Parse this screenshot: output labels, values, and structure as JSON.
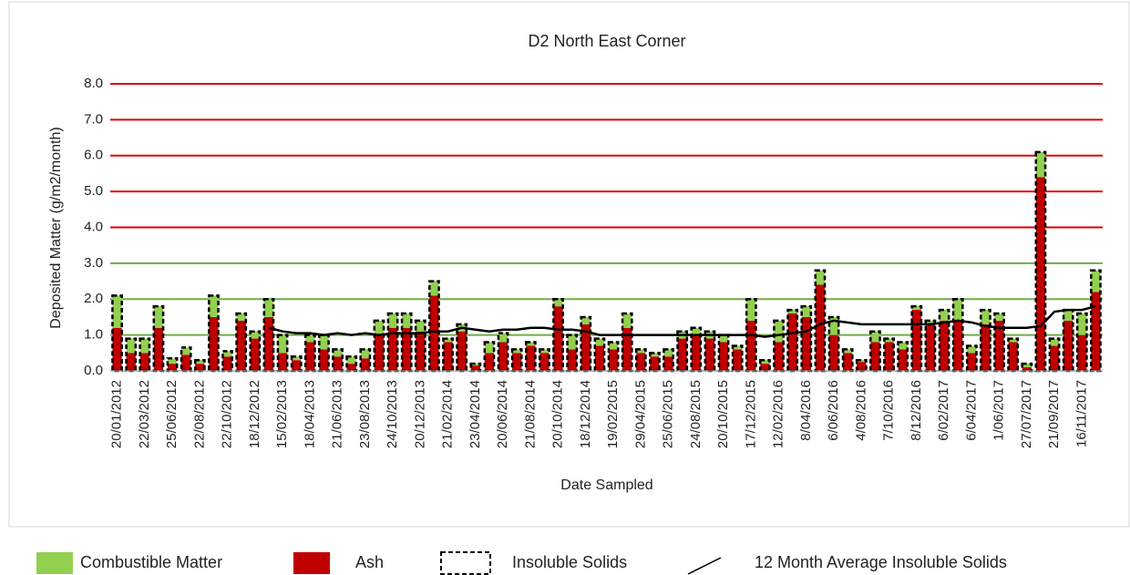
{
  "chart_data": {
    "type": "bar",
    "title": "D2 North East Corner",
    "x_label": "Date Sampled",
    "y_label": "Deposited Matter (g/m2/month)",
    "categories": [
      "20/01/2012",
      null,
      "22/03/2012",
      null,
      "25/06/2012",
      null,
      "22/08/2012",
      null,
      "22/10/2012",
      null,
      "18/12/2012",
      null,
      "15/02/2013",
      null,
      "18/04/2013",
      null,
      "21/06/2013",
      null,
      "23/08/2013",
      null,
      "24/10/2013",
      null,
      "20/12/2013",
      null,
      "21/02/2014",
      null,
      "23/04/2014",
      null,
      "20/06/2014",
      null,
      "21/08/2014",
      null,
      "20/10/2014",
      null,
      "18/12/2014",
      null,
      "19/02/2015",
      null,
      "29/04/2015",
      null,
      "25/06/2015",
      null,
      "24/08/2015",
      null,
      "20/10/2015",
      null,
      "17/12/2015",
      null,
      "12/02/2016",
      null,
      "8/04/2016",
      null,
      "6/06/2016",
      null,
      "4/08/2016",
      null,
      "7/10/2016",
      null,
      "8/12/2016",
      null,
      "6/02/2017",
      null,
      "6/04/2017",
      null,
      "1/06/2017",
      null,
      "27/07/2017",
      null,
      "21/09/2017",
      null,
      "16/11/2017",
      null
    ],
    "series": [
      {
        "name": "Combustible Matter",
        "color": "#92d050",
        "values": [
          0.9,
          0.4,
          0.4,
          0.6,
          0.15,
          0.2,
          0.1,
          0.6,
          0.15,
          0.2,
          0.2,
          0.5,
          0.5,
          0.1,
          0.2,
          0.4,
          0.2,
          0.2,
          0.25,
          0.4,
          0.4,
          0.4,
          0.3,
          0.4,
          0.1,
          0.2,
          0.05,
          0.3,
          0.25,
          0.1,
          0.1,
          0.1,
          0.2,
          0.4,
          0.2,
          0.2,
          0.2,
          0.4,
          0.1,
          0.1,
          0.2,
          0.2,
          0.2,
          0.2,
          0.2,
          0.1,
          0.6,
          0.1,
          0.6,
          0.1,
          0.3,
          0.4,
          0.5,
          0.1,
          0.05,
          0.3,
          0.1,
          0.2,
          0.1,
          0.1,
          0.3,
          0.6,
          0.2,
          0.4,
          0.2,
          0.1,
          0.1,
          0.7,
          0.2,
          0.3,
          0.6,
          0.6
        ]
      },
      {
        "name": "Ash",
        "color": "#c00000",
        "values": [
          1.2,
          0.5,
          0.5,
          1.2,
          0.2,
          0.45,
          0.2,
          1.5,
          0.4,
          1.4,
          0.9,
          1.5,
          0.5,
          0.3,
          0.8,
          0.6,
          0.4,
          0.2,
          0.35,
          1.0,
          1.2,
          1.2,
          1.1,
          2.1,
          0.8,
          1.1,
          0.15,
          0.5,
          0.8,
          0.5,
          0.7,
          0.5,
          1.8,
          0.6,
          1.3,
          0.7,
          0.6,
          1.2,
          0.5,
          0.4,
          0.4,
          0.9,
          1.0,
          0.9,
          0.8,
          0.6,
          1.4,
          0.2,
          0.8,
          1.6,
          1.5,
          2.4,
          1.0,
          0.5,
          0.25,
          0.8,
          0.8,
          0.6,
          1.7,
          1.3,
          1.4,
          1.4,
          0.5,
          1.3,
          1.4,
          0.8,
          0.1,
          5.4,
          0.7,
          1.4,
          1.0,
          2.2
        ]
      },
      {
        "name": "Insoluble Solids",
        "type": "outline",
        "color": "#000000",
        "values": [
          2.1,
          0.9,
          0.9,
          1.8,
          0.35,
          0.65,
          0.3,
          2.1,
          0.55,
          1.6,
          1.1,
          2.0,
          1.0,
          0.4,
          1.0,
          1.0,
          0.6,
          0.4,
          0.6,
          1.4,
          1.6,
          1.6,
          1.4,
          2.5,
          0.9,
          1.3,
          0.2,
          0.8,
          1.05,
          0.6,
          0.8,
          0.6,
          2.0,
          1.0,
          1.5,
          0.9,
          0.8,
          1.6,
          0.6,
          0.5,
          0.6,
          1.1,
          1.2,
          1.1,
          1.0,
          0.7,
          2.0,
          0.3,
          1.4,
          1.7,
          1.8,
          2.8,
          1.5,
          0.6,
          0.3,
          1.1,
          0.9,
          0.8,
          1.8,
          1.4,
          1.7,
          2.0,
          0.7,
          1.7,
          1.6,
          0.9,
          0.2,
          6.1,
          0.9,
          1.7,
          1.6,
          2.8
        ]
      },
      {
        "name": "12 Month Average Insoluble Solids",
        "type": "line",
        "color": "#000000",
        "values": [
          null,
          null,
          null,
          null,
          null,
          null,
          null,
          null,
          null,
          null,
          null,
          1.2,
          1.1,
          1.05,
          1.05,
          1.0,
          1.05,
          1.0,
          1.05,
          1.0,
          1.05,
          1.05,
          1.05,
          1.1,
          1.1,
          1.2,
          1.15,
          1.1,
          1.15,
          1.15,
          1.2,
          1.2,
          1.15,
          1.15,
          1.1,
          1.0,
          1.0,
          1.0,
          1.0,
          1.0,
          1.0,
          1.0,
          1.0,
          1.0,
          1.0,
          1.0,
          1.0,
          0.95,
          1.0,
          1.05,
          1.1,
          1.3,
          1.4,
          1.35,
          1.3,
          1.3,
          1.3,
          1.3,
          1.3,
          1.3,
          1.35,
          1.4,
          1.35,
          1.25,
          1.2,
          1.2,
          1.2,
          1.25,
          1.65,
          1.7,
          1.7,
          1.8
        ]
      }
    ],
    "ylim": [
      0,
      8
    ],
    "yticks": [
      {
        "value": 0,
        "label": "0.0"
      },
      {
        "value": 1,
        "label": "1.0"
      },
      {
        "value": 2,
        "label": "2.0"
      },
      {
        "value": 3,
        "label": "3.0"
      },
      {
        "value": 4,
        "label": "4.0"
      },
      {
        "value": 5,
        "label": "5.0"
      },
      {
        "value": 6,
        "label": "6.0"
      },
      {
        "value": 7,
        "label": "7.0"
      },
      {
        "value": 8,
        "label": "8.0"
      }
    ],
    "grid": true,
    "grid_colors": [
      "#bfbfbf",
      "#70ad47",
      "#70ad47",
      "#70ad47",
      "#e00000",
      "#e00000",
      "#e00000",
      "#e00000",
      "#e00000"
    ],
    "legend": "bottom"
  }
}
